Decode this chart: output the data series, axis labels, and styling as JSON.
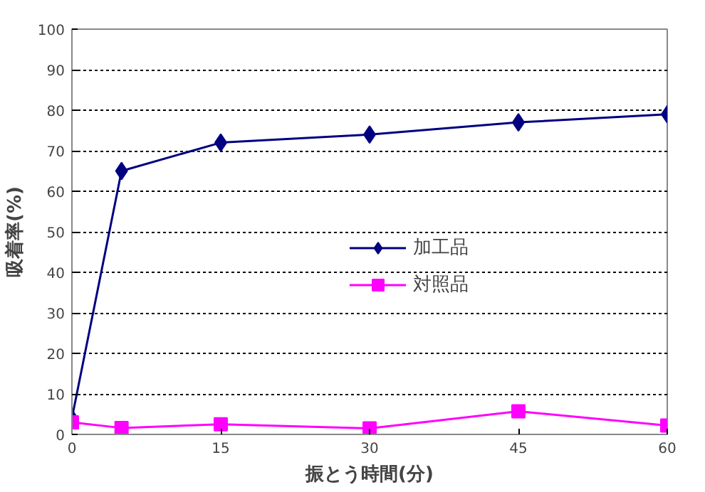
{
  "chart_data": {
    "type": "line",
    "xlabel": "振とう時間(分)",
    "ylabel": "吸着率(%)",
    "x": [
      0,
      5,
      15,
      30,
      45,
      60
    ],
    "series": [
      {
        "name": "加工品",
        "color": "#000080",
        "marker": "diamond",
        "values": [
          4,
          65,
          72,
          74,
          77,
          79
        ]
      },
      {
        "name": "対照品",
        "color": "#ff00ff",
        "marker": "square",
        "values": [
          3,
          1.6,
          2.5,
          1.5,
          5.7,
          2.2
        ]
      }
    ],
    "xlim": [
      0,
      60
    ],
    "xticks": [
      0,
      15,
      30,
      45,
      60
    ],
    "ylim": [
      0,
      100
    ],
    "yticks": [
      0,
      10,
      20,
      30,
      40,
      50,
      60,
      70,
      80,
      90,
      100
    ],
    "grid": "y",
    "legend": "right",
    "line_style": "solid"
  }
}
